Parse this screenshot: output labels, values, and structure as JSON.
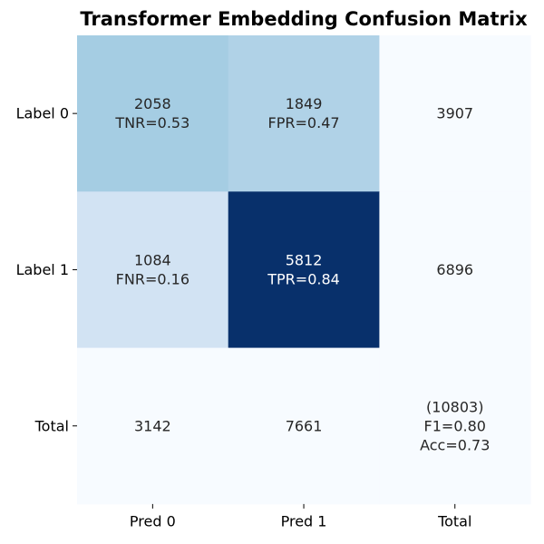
{
  "chart_data": {
    "type": "heatmap",
    "title": "Transformer Embedding Confusion Matrix",
    "colormap": "Blues",
    "row_labels": [
      "Label 0",
      "Label 1",
      "Total"
    ],
    "col_labels": [
      "Pred 0",
      "Pred 1",
      "Total"
    ],
    "values": [
      [
        2058,
        1849,
        3907
      ],
      [
        1084,
        5812,
        6896
      ],
      [
        3142,
        7661,
        10803
      ]
    ],
    "shaded_values": [
      [
        2058,
        1849,
        null
      ],
      [
        1084,
        5812,
        null
      ],
      [
        null,
        null,
        null
      ]
    ],
    "cell_text": [
      [
        "2058",
        "TNR=0.53",
        "1849",
        "FPR=0.47",
        "3907"
      ],
      [
        "1084",
        "FNR=0.16",
        "5812",
        "TPR=0.84",
        "6896"
      ],
      [
        "3142",
        "7661",
        "(10803)",
        "F1=0.80",
        "Acc=0.73"
      ]
    ],
    "cells": [
      [
        {
          "lines": [
            "2058",
            "TNR=0.53"
          ]
        },
        {
          "lines": [
            "1849",
            "FPR=0.47"
          ]
        },
        {
          "lines": [
            "3907"
          ]
        }
      ],
      [
        {
          "lines": [
            "1084",
            "FNR=0.16"
          ]
        },
        {
          "lines": [
            "5812",
            "TPR=0.84"
          ]
        },
        {
          "lines": [
            "6896"
          ]
        }
      ],
      [
        {
          "lines": [
            "3142"
          ]
        },
        {
          "lines": [
            "7661"
          ]
        },
        {
          "lines": [
            "(10803)",
            "F1=0.80",
            "Acc=0.73"
          ]
        }
      ]
    ],
    "colorbar": false,
    "grid": false,
    "legend": "none"
  }
}
